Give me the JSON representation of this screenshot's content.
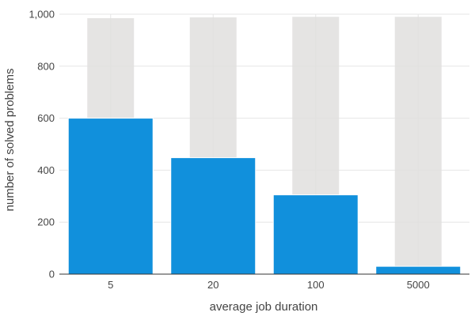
{
  "chart_data": {
    "type": "bar",
    "categories": [
      "5",
      "20",
      "100",
      "5000"
    ],
    "series": [
      {
        "values": [
          985,
          988,
          990,
          990
        ],
        "color": "#e0dfde"
      },
      {
        "values": [
          600,
          448,
          305,
          30
        ],
        "color": "#1190dc"
      }
    ],
    "xlabel": "average job duration",
    "ylabel": "number of solved problems",
    "ylim": [
      0,
      1000
    ],
    "yticks": [
      0,
      200,
      400,
      600,
      800,
      1000
    ],
    "ytick_labels": [
      "0",
      "200",
      "400",
      "600",
      "800",
      "1,000"
    ],
    "grid": true
  }
}
